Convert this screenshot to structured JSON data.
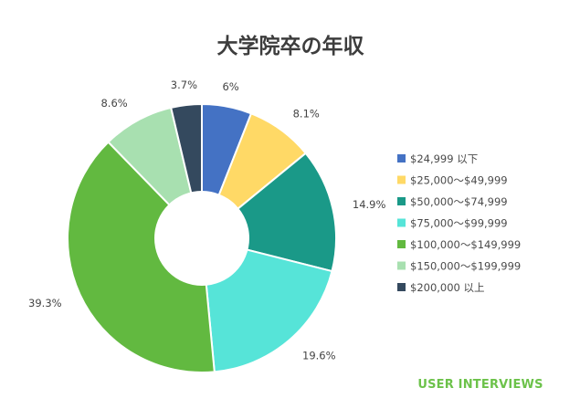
{
  "chart_data": {
    "type": "pie",
    "title": "大学院卒の年収",
    "categories": [
      "$24,999 以下",
      "$25,000〜$49,999",
      "$50,000〜$74,999",
      "$75,000〜$99,999",
      "$100,000〜$149,999",
      "$150,000〜$199,999",
      "$200,000 以上"
    ],
    "values": [
      6,
      8.1,
      14.9,
      19.6,
      39.3,
      8.6,
      3.7
    ],
    "data_labels": [
      "6%",
      "8.1%",
      "14.9%",
      "19.6%",
      "39.3%",
      "8.6%",
      "3.7%"
    ],
    "colors": [
      "#4472c4",
      "#ffd966",
      "#1a9988",
      "#56e4d8",
      "#62b940",
      "#a8e0b0",
      "#34495e"
    ],
    "donut": true,
    "legend_position": "right"
  },
  "watermark": "USER INTERVIEWS"
}
